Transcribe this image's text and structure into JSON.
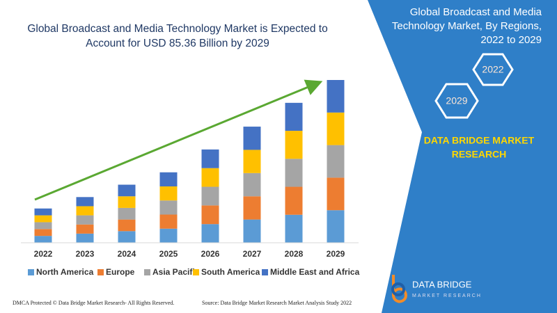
{
  "title": [
    "Global Broadcast and Media Technology Market is Expected to",
    "Account for USD 85.36 Billion by 2029"
  ],
  "chart_data": {
    "type": "stacked-bar",
    "categories": [
      "2022",
      "2023",
      "2024",
      "2025",
      "2026",
      "2027",
      "2028",
      "2029"
    ],
    "series": [
      {
        "name": "North America",
        "color": "#5b9bd5",
        "values": [
          3.6,
          4.8,
          6.1,
          7.4,
          9.8,
          12.2,
          14.7,
          17.1
        ]
      },
      {
        "name": "Europe",
        "color": "#ed7d31",
        "values": [
          3.6,
          4.8,
          6.1,
          7.4,
          9.8,
          12.2,
          14.7,
          17.1
        ]
      },
      {
        "name": "Asia Pacific",
        "color": "#a5a5a5",
        "values": [
          3.6,
          4.8,
          6.1,
          7.4,
          9.8,
          12.2,
          14.7,
          17.1
        ]
      },
      {
        "name": "South America",
        "color": "#ffc000",
        "values": [
          3.6,
          4.8,
          6.1,
          7.4,
          9.8,
          12.2,
          14.7,
          17.1
        ]
      },
      {
        "name": "Middle East and Africa",
        "color": "#4472c4",
        "values": [
          3.6,
          4.8,
          6.1,
          7.4,
          9.8,
          12.2,
          14.7,
          17.1
        ]
      }
    ]
  },
  "panel": {
    "title": [
      "Global Broadcast and Media",
      "Technology Market, By Regions,",
      "2022 to 2029"
    ],
    "hex_1": "2022",
    "hex_2": "2029",
    "brand": [
      "DATA BRIDGE MARKET",
      "RESEARCH"
    ]
  },
  "logo": {
    "name": "DATA BRIDGE",
    "tagline": "MARKET RESEARCH"
  },
  "footer": {
    "left": "DMCA Protected © Data Bridge Market Research- All Rights Reserved.",
    "right": "Source: Data Bridge Market Research Market Analysis Study 2022"
  }
}
